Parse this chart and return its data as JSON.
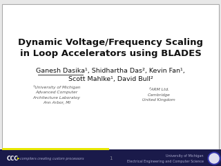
{
  "title_line1": "Dynamic Voltage/Frequency Scaling",
  "title_line2": "in Loop Accelerators using BLADES",
  "authors_line1": "Ganesh Dasika¹, Shidhartha Das², Kevin Fan¹,",
  "authors_line2": "Scott Mahlke¹, David Bull²",
  "affil1_line1": "¹University of Michigan",
  "affil1_line2": "Advanced Computer",
  "affil1_line3": "Architecture Laboratoy",
  "affil1_line4": "Ann Arbor, MI",
  "affil2_line1": "²ARM Ltd.",
  "affil2_line2": "Cambridge",
  "affil2_line3": "United Kingdom",
  "page_number": "1",
  "footer_left": "compilers creating custom processors",
  "footer_right_line1": "University of Michigan",
  "footer_right_line2": "Electrical Engineering and Computer Science",
  "bg_color": "#e8e8e8",
  "slide_bg": "#ffffff",
  "border_color": "#aaaaaa",
  "title_color": "#111111",
  "author_color": "#111111",
  "affil_color": "#555555",
  "footer_bg": "#1a1a4a",
  "accent_color": "#e8e800",
  "title_fontsize": 9.5,
  "author_fontsize": 6.8,
  "affil_fontsize": 4.3,
  "footer_fontsize": 3.5
}
